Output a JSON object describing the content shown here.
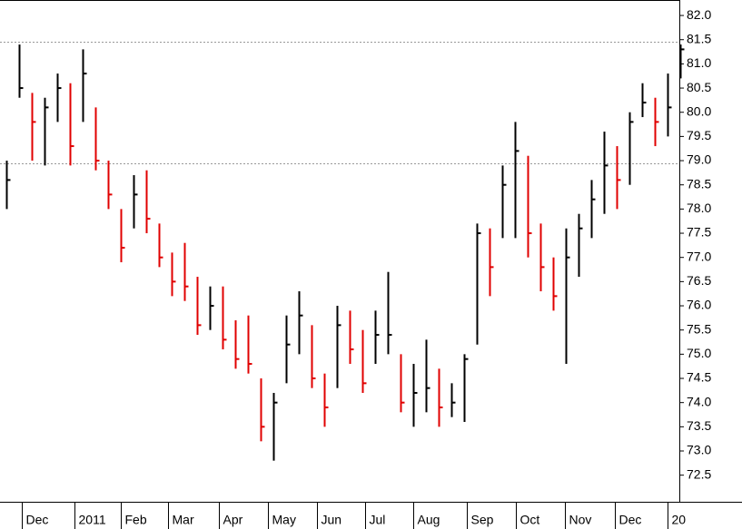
{
  "chart_data": {
    "type": "hlc",
    "high": [
      79.0,
      81.4,
      80.4,
      80.3,
      80.8,
      80.6,
      81.3,
      80.1,
      79.0,
      78.0,
      78.7,
      78.8,
      77.7,
      77.1,
      77.3,
      76.6,
      76.4,
      76.4,
      75.7,
      75.8,
      74.5,
      74.2,
      75.8,
      76.3,
      75.6,
      74.6,
      76.0,
      75.9,
      75.5,
      75.9,
      76.7,
      75.0,
      74.8,
      75.3,
      74.7,
      74.4,
      75.0,
      77.7,
      77.6,
      78.9,
      79.8,
      79.1,
      77.7,
      77.0,
      77.6,
      77.9,
      78.6,
      79.6,
      79.3,
      80.0,
      80.6,
      80.3,
      80.8,
      81.4
    ],
    "low": [
      78.0,
      80.3,
      79.0,
      78.9,
      79.8,
      78.9,
      79.8,
      78.8,
      78.0,
      76.9,
      77.6,
      77.5,
      76.8,
      76.2,
      76.1,
      75.4,
      75.5,
      75.1,
      74.7,
      74.6,
      73.2,
      72.8,
      74.4,
      75.0,
      74.3,
      73.5,
      74.3,
      74.8,
      74.2,
      74.8,
      75.0,
      73.8,
      73.5,
      73.8,
      73.5,
      73.7,
      73.6,
      75.2,
      76.2,
      77.4,
      77.4,
      77.0,
      76.3,
      75.9,
      74.8,
      76.6,
      77.4,
      77.9,
      78.0,
      78.5,
      79.9,
      79.3,
      79.5,
      80.7
    ],
    "close": [
      78.6,
      80.5,
      79.8,
      80.1,
      80.5,
      79.3,
      80.8,
      79.0,
      78.3,
      77.2,
      78.3,
      77.8,
      77.0,
      76.5,
      76.4,
      75.6,
      76.0,
      75.3,
      74.9,
      74.8,
      73.5,
      74.0,
      75.2,
      75.8,
      74.5,
      73.9,
      75.6,
      75.1,
      74.4,
      75.4,
      75.4,
      74.0,
      74.2,
      74.3,
      73.9,
      74.0,
      74.9,
      77.5,
      76.8,
      78.5,
      79.2,
      77.5,
      76.8,
      76.2,
      77.0,
      77.6,
      78.2,
      78.9,
      78.6,
      79.8,
      80.2,
      79.8,
      80.1,
      81.3
    ],
    "up_color": "#000000",
    "down_color": "#e00000",
    "reference_lines": [
      81.45,
      78.95
    ],
    "ylim": [
      71.95,
      82.32
    ],
    "yticks": [
      72.5,
      {
        "value": 73,
        "label": "73.0"
      },
      73.5,
      {
        "value": 74,
        "label": "74.0"
      },
      74.5,
      {
        "value": 75,
        "label": "75.0"
      },
      75.5,
      {
        "value": 76,
        "label": "76.0"
      },
      76.5,
      {
        "value": 77,
        "label": "77.0"
      },
      77.5,
      {
        "value": 78,
        "label": "78.0"
      },
      78.5,
      {
        "value": 79,
        "label": "79.0"
      },
      79.5,
      {
        "value": 80,
        "label": "80.0"
      },
      80.5,
      {
        "value": 81,
        "label": "81.0"
      },
      81.5,
      {
        "value": 82,
        "label": "82.0"
      }
    ],
    "xlim": [
      -0.5,
      52.93
    ],
    "xticks": [
      {
        "value": 1.21,
        "label": "Dec"
      },
      {
        "value": 5.36,
        "label": "2011"
      },
      {
        "value": 9.0,
        "label": "Feb"
      },
      {
        "value": 12.71,
        "label": "Mar"
      },
      {
        "value": 16.71,
        "label": "Apr"
      },
      {
        "value": 20.57,
        "label": "May"
      },
      {
        "value": 24.43,
        "label": "Jun"
      },
      {
        "value": 28.21,
        "label": "Jul"
      },
      {
        "value": 32.0,
        "label": "Aug"
      },
      {
        "value": 36.21,
        "label": "Sep"
      },
      {
        "value": 40.07,
        "label": "Oct"
      },
      {
        "value": 43.93,
        "label": "Nov"
      },
      {
        "value": 47.86,
        "label": "Dec"
      },
      {
        "value": 52.0,
        "label": "20"
      }
    ]
  }
}
